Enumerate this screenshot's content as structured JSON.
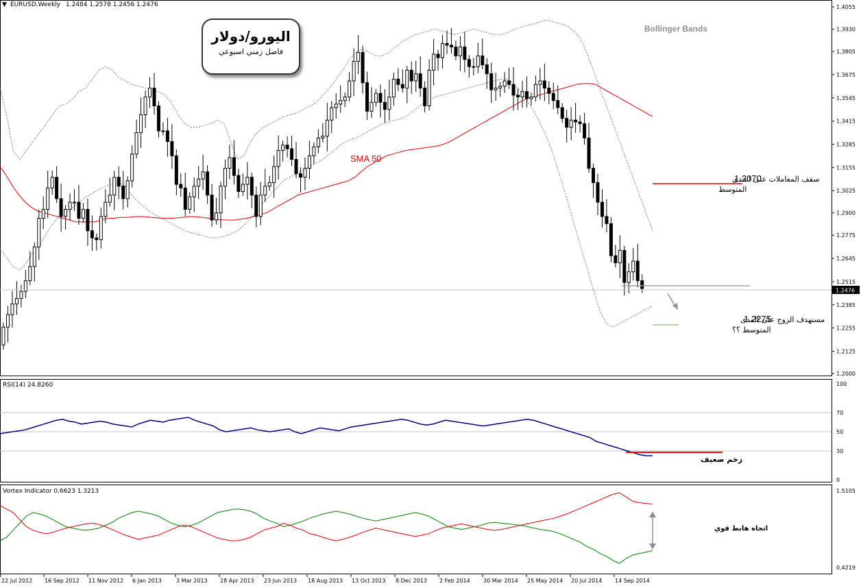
{
  "header": {
    "symbol": "EURUSD,Weekly",
    "ohlc": "1.2484 1.2578 1.2456 1.2476"
  },
  "title_box": {
    "title": "اليورو/دولار",
    "subtitle": "فاصل زمني اسبوعي"
  },
  "annotations": {
    "bollinger": "Bollinger Bands",
    "sma": "SMA 50",
    "resistance_value": "1.3070",
    "resistance_line1": "سقف المعاملات على المدى",
    "resistance_line2": "المتوسط",
    "target_value": "1.2275",
    "target_line1": "مستهدف الزوج على المدى",
    "target_line2": "المتوسط ؟؟",
    "rsi_note": "زخم ضعيف",
    "vortex_note": "اتجاه هابط قوي",
    "current_price": "1.2476"
  },
  "rsi_header": "RSI(14) 24.8260",
  "vortex_header": "Vortex Indicator 0.6623 1.3213",
  "colors": {
    "bull": "#ffffff",
    "bear": "#000000",
    "sma": "#e00000",
    "bands": "#555555",
    "rsi": "#000080",
    "vi_plus": "#008000",
    "vi_minus": "#e00000",
    "highlight_line": "#ff0000",
    "support_line": "#a0a0a0"
  },
  "chart_data": [
    {
      "type": "candlestick",
      "title": "EURUSD,Weekly",
      "x_tick_labels": [
        "22 Jul 2012",
        "16 Sep 2012",
        "11 Nov 2012",
        "6 Jan 2013",
        "3 Mar 2013",
        "28 Apr 2013",
        "23 Jun 2013",
        "18 Aug 2013",
        "13 Oct 2013",
        "8 Dec 2013",
        "2 Feb 2014",
        "30 Mar 2014",
        "25 May 2014",
        "20 Jul 2014",
        "14 Sep 2014"
      ],
      "y_tick_labels": [
        "1.4055",
        "1.3930",
        "1.3805",
        "1.3675",
        "1.3545",
        "1.3415",
        "1.3285",
        "1.3155",
        "1.3025",
        "1.2900",
        "1.2775",
        "1.2645",
        "1.2515",
        "1.2385",
        "1.2255",
        "1.2125",
        "1.2000"
      ],
      "ylim": [
        1.2,
        1.4055
      ],
      "series": [
        {
          "name": "Bollinger Bands",
          "style": "dotted"
        },
        {
          "name": "SMA 50",
          "style": "solid"
        }
      ],
      "price_levels": [
        1.307,
        1.2275,
        1.2476
      ],
      "sma_50": [
        1.316,
        1.311,
        1.305,
        1.3,
        1.296,
        1.293,
        1.291,
        1.29,
        1.289,
        1.288,
        1.287,
        1.286,
        1.285,
        1.285,
        1.285,
        1.285,
        1.286,
        1.287,
        1.287,
        1.2875,
        1.2875,
        1.2878,
        1.288,
        1.2878,
        1.2875,
        1.2872,
        1.287,
        1.287,
        1.2872,
        1.2876,
        1.288,
        1.2878,
        1.2875,
        1.287,
        1.2865,
        1.2862,
        1.286,
        1.286,
        1.2865,
        1.287,
        1.288,
        1.289,
        1.29,
        1.292,
        1.294,
        1.296,
        1.298,
        1.3,
        1.301,
        1.302,
        1.303,
        1.304,
        1.305,
        1.306,
        1.307,
        1.308,
        1.31,
        1.313,
        1.316,
        1.318,
        1.32,
        1.322,
        1.323,
        1.324,
        1.325,
        1.3255,
        1.326,
        1.3265,
        1.327,
        1.3275,
        1.3285,
        1.33,
        1.332,
        1.334,
        1.336,
        1.338,
        1.34,
        1.342,
        1.344,
        1.346,
        1.348,
        1.35,
        1.352,
        1.354,
        1.355,
        1.356,
        1.357,
        1.358,
        1.359,
        1.36,
        1.361,
        1.362,
        1.3625,
        1.3625,
        1.362,
        1.36,
        1.358,
        1.356,
        1.354,
        1.352,
        1.35,
        1.348,
        1.346,
        1.344
      ],
      "bb_upper": [
        1.36,
        1.345,
        1.325,
        1.32,
        1.325,
        1.33,
        1.335,
        1.34,
        1.345,
        1.35,
        1.351,
        1.354,
        1.358,
        1.36,
        1.365,
        1.37,
        1.372,
        1.37,
        1.366,
        1.364,
        1.362,
        1.361,
        1.36,
        1.359,
        1.358,
        1.356,
        1.352,
        1.345,
        1.34,
        1.338,
        1.338,
        1.339,
        1.34,
        1.342,
        1.34,
        1.33,
        1.32,
        1.322,
        1.33,
        1.335,
        1.338,
        1.34,
        1.342,
        1.344,
        1.345,
        1.346,
        1.348,
        1.35,
        1.352,
        1.356,
        1.36,
        1.365,
        1.37,
        1.376,
        1.38,
        1.382,
        1.38,
        1.378,
        1.378,
        1.38,
        1.383,
        1.386,
        1.388,
        1.39,
        1.391,
        1.392,
        1.393,
        1.392,
        1.391,
        1.39,
        1.391,
        1.392,
        1.393,
        1.392,
        1.391,
        1.39,
        1.39,
        1.391,
        1.393,
        1.394,
        1.395,
        1.396,
        1.397,
        1.398,
        1.397,
        1.396,
        1.395,
        1.392,
        1.388,
        1.38,
        1.37,
        1.36,
        1.35,
        1.34,
        1.33,
        1.32,
        1.31,
        1.3,
        1.29,
        1.28
      ],
      "bb_lower": [
        1.27,
        1.265,
        1.26,
        1.258,
        1.262,
        1.268,
        1.272,
        1.278,
        1.284,
        1.288,
        1.29,
        1.293,
        1.296,
        1.299,
        1.301,
        1.303,
        1.305,
        1.306,
        1.307,
        1.305,
        1.3,
        1.296,
        1.293,
        1.29,
        1.288,
        1.286,
        1.284,
        1.282,
        1.28,
        1.279,
        1.278,
        1.277,
        1.276,
        1.276,
        1.277,
        1.278,
        1.28,
        1.283,
        1.287,
        1.291,
        1.296,
        1.3,
        1.304,
        1.308,
        1.31,
        1.312,
        1.314,
        1.316,
        1.318,
        1.32,
        1.323,
        1.326,
        1.329,
        1.331,
        1.332,
        1.334,
        1.336,
        1.338,
        1.34,
        1.341,
        1.342,
        1.343,
        1.345,
        1.348,
        1.351,
        1.353,
        1.355,
        1.356,
        1.357,
        1.358,
        1.359,
        1.36,
        1.361,
        1.362,
        1.363,
        1.364,
        1.365,
        1.365,
        1.362,
        1.358,
        1.353,
        1.347,
        1.34,
        1.332,
        1.322,
        1.31,
        1.298,
        1.285,
        1.272,
        1.26,
        1.247,
        1.235,
        1.228,
        1.226,
        1.228,
        1.23,
        1.232,
        1.234,
        1.236,
        1.238
      ],
      "close": [
        1.226,
        1.233,
        1.239,
        1.242,
        1.246,
        1.252,
        1.26,
        1.271,
        1.287,
        1.292,
        1.304,
        1.31,
        1.298,
        1.288,
        1.292,
        1.296,
        1.296,
        1.287,
        1.292,
        1.28,
        1.276,
        1.275,
        1.288,
        1.296,
        1.3,
        1.31,
        1.305,
        1.298,
        1.308,
        1.323,
        1.335,
        1.345,
        1.355,
        1.36,
        1.35,
        1.336,
        1.336,
        1.33,
        1.322,
        1.306,
        1.304,
        1.292,
        1.299,
        1.305,
        1.309,
        1.313,
        1.3,
        1.286,
        1.29,
        1.305,
        1.315,
        1.321,
        1.311,
        1.302,
        1.306,
        1.31,
        1.3,
        1.288,
        1.3,
        1.305,
        1.307,
        1.316,
        1.325,
        1.328,
        1.326,
        1.32,
        1.312,
        1.31,
        1.315,
        1.322,
        1.327,
        1.332,
        1.333,
        1.342,
        1.349,
        1.351,
        1.353,
        1.355,
        1.364,
        1.375,
        1.38,
        1.363,
        1.347,
        1.352,
        1.357,
        1.352,
        1.348,
        1.355,
        1.365,
        1.362,
        1.36,
        1.37,
        1.364,
        1.368,
        1.36,
        1.35,
        1.37,
        1.379,
        1.377,
        1.385,
        1.384,
        1.383,
        1.378,
        1.383,
        1.376,
        1.372,
        1.372,
        1.378,
        1.373,
        1.368,
        1.359,
        1.36,
        1.361,
        1.364,
        1.362,
        1.356,
        1.355,
        1.358,
        1.354,
        1.355,
        1.362,
        1.364,
        1.36,
        1.357,
        1.353,
        1.349,
        1.343,
        1.338,
        1.342,
        1.341,
        1.34,
        1.332,
        1.315,
        1.307,
        1.296,
        1.288,
        1.284,
        1.266,
        1.262,
        1.269,
        1.251,
        1.257,
        1.263,
        1.252,
        1.2476
      ]
    },
    {
      "type": "line",
      "title": "RSI(14) 24.8260",
      "ylim": [
        0,
        100
      ],
      "y_tick_labels": [
        "100",
        "70",
        "50",
        "30",
        "0"
      ],
      "levels": [
        70,
        50,
        30
      ],
      "series": [
        {
          "name": "RSI(14)",
          "values": [
            48,
            49,
            50,
            51,
            52,
            54,
            56,
            58,
            60,
            62,
            63,
            61,
            60,
            58,
            59,
            60,
            61,
            60,
            58,
            57,
            56,
            55,
            58,
            60,
            62,
            61,
            60,
            62,
            63,
            64,
            65,
            62,
            60,
            58,
            56,
            52,
            50,
            51,
            52,
            53,
            54,
            52,
            51,
            50,
            51,
            52,
            53,
            50,
            48,
            50,
            52,
            54,
            53,
            52,
            51,
            53,
            55,
            56,
            57,
            58,
            59,
            60,
            61,
            62,
            63,
            62,
            60,
            58,
            57,
            58,
            60,
            62,
            61,
            60,
            59,
            58,
            57,
            56,
            57,
            58,
            59,
            60,
            61,
            62,
            63,
            62,
            60,
            58,
            56,
            54,
            52,
            50,
            48,
            46,
            44,
            40,
            38,
            36,
            34,
            32,
            30,
            28,
            26,
            25,
            25
          ]
        }
      ]
    },
    {
      "type": "line",
      "title": "Vortex Indicator 0.6623 1.3213",
      "ylim": [
        0.4219,
        1.5105
      ],
      "y_tick_labels": [
        "1.5105",
        "0.4219"
      ],
      "series": [
        {
          "name": "VI+",
          "values": [
            0.8,
            0.85,
            0.95,
            1.05,
            1.15,
            1.2,
            1.18,
            1.15,
            1.1,
            1.05,
            1.0,
            0.98,
            0.96,
            0.95,
            0.96,
            0.98,
            1.02,
            1.06,
            1.12,
            1.16,
            1.2,
            1.22,
            1.2,
            1.18,
            1.15,
            1.1,
            1.05,
            1.02,
            1.0,
            1.02,
            1.05,
            1.1,
            1.15,
            1.2,
            1.22,
            1.24,
            1.25,
            1.24,
            1.22,
            1.18,
            1.12,
            1.08,
            1.05,
            1.0,
            1.02,
            1.05,
            1.08,
            1.12,
            1.15,
            1.18,
            1.2,
            1.22,
            1.2,
            1.18,
            1.15,
            1.12,
            1.1,
            1.08,
            1.1,
            1.12,
            1.14,
            1.16,
            1.18,
            1.2,
            1.18,
            1.15,
            1.1,
            1.05,
            1.0,
            0.98,
            0.96,
            0.98,
            1.0,
            1.02,
            1.05,
            1.06,
            1.05,
            1.04,
            1.03,
            1.02,
            1.0,
            0.98,
            0.96,
            0.95,
            0.93,
            0.9,
            0.86,
            0.82,
            0.78,
            0.72,
            0.68,
            0.62,
            0.58,
            0.52,
            0.48,
            0.55,
            0.6,
            0.62,
            0.64,
            0.66
          ]
        },
        {
          "name": "VI-",
          "values": [
            1.3,
            1.25,
            1.2,
            1.1,
            1.0,
            0.95,
            0.92,
            0.9,
            0.92,
            0.95,
            0.98,
            1.0,
            1.02,
            1.04,
            1.05,
            1.03,
            1.0,
            0.96,
            0.92,
            0.88,
            0.85,
            0.82,
            0.84,
            0.86,
            0.88,
            0.92,
            0.96,
            1.0,
            1.02,
            1.0,
            0.96,
            0.92,
            0.88,
            0.84,
            0.82,
            0.8,
            0.8,
            0.82,
            0.85,
            0.9,
            0.95,
            0.98,
            1.0,
            1.05,
            1.02,
            0.98,
            0.95,
            0.9,
            0.88,
            0.85,
            0.82,
            0.8,
            0.82,
            0.85,
            0.88,
            0.92,
            0.95,
            0.98,
            0.96,
            0.94,
            0.92,
            0.9,
            0.88,
            0.86,
            0.88,
            0.9,
            0.94,
            0.98,
            1.0,
            1.02,
            1.04,
            1.02,
            1.0,
            0.98,
            0.96,
            0.95,
            0.96,
            0.98,
            1.0,
            1.02,
            1.04,
            1.06,
            1.08,
            1.1,
            1.12,
            1.15,
            1.18,
            1.22,
            1.26,
            1.3,
            1.34,
            1.38,
            1.42,
            1.46,
            1.48,
            1.42,
            1.36,
            1.34,
            1.33,
            1.32
          ]
        }
      ]
    }
  ]
}
